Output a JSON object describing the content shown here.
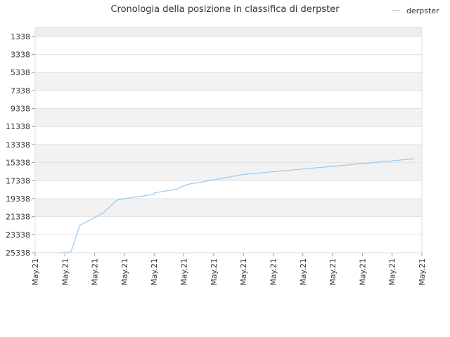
{
  "chart_data": {
    "type": "line",
    "title": "Cronologia della posizione in classifica di derpster",
    "xlabel": "",
    "ylabel": "",
    "y_inverted": true,
    "ylim": [
      25338,
      338
    ],
    "yticks": [
      1338,
      3338,
      5338,
      7338,
      9338,
      11338,
      13338,
      15338,
      17338,
      19338,
      21338,
      23338,
      25338
    ],
    "xticks": [
      "May.21",
      "May.21",
      "May.21",
      "May.21",
      "May.21",
      "May.21",
      "May.21",
      "May.21",
      "May.21",
      "May.21",
      "May.21",
      "May.21",
      "May.21",
      "May.21"
    ],
    "grid": true,
    "legend_position": "top-right",
    "series": [
      {
        "name": "derpster",
        "color": "#99c9ef",
        "x": [
          0.75,
          1.2,
          1.5,
          2.3,
          2.75,
          3.0,
          4.0,
          4.0,
          4.75,
          5.0,
          5.2,
          5.5,
          6.0,
          6.5,
          7.0,
          8.0,
          9.0,
          10.0,
          11.0,
          12.0,
          12.75
        ],
        "y": [
          25338,
          25270,
          22300,
          20900,
          19500,
          19340,
          18850,
          18700,
          18300,
          17900,
          17700,
          17550,
          17250,
          16950,
          16650,
          16350,
          16050,
          15750,
          15450,
          15150,
          14900
        ]
      }
    ]
  }
}
